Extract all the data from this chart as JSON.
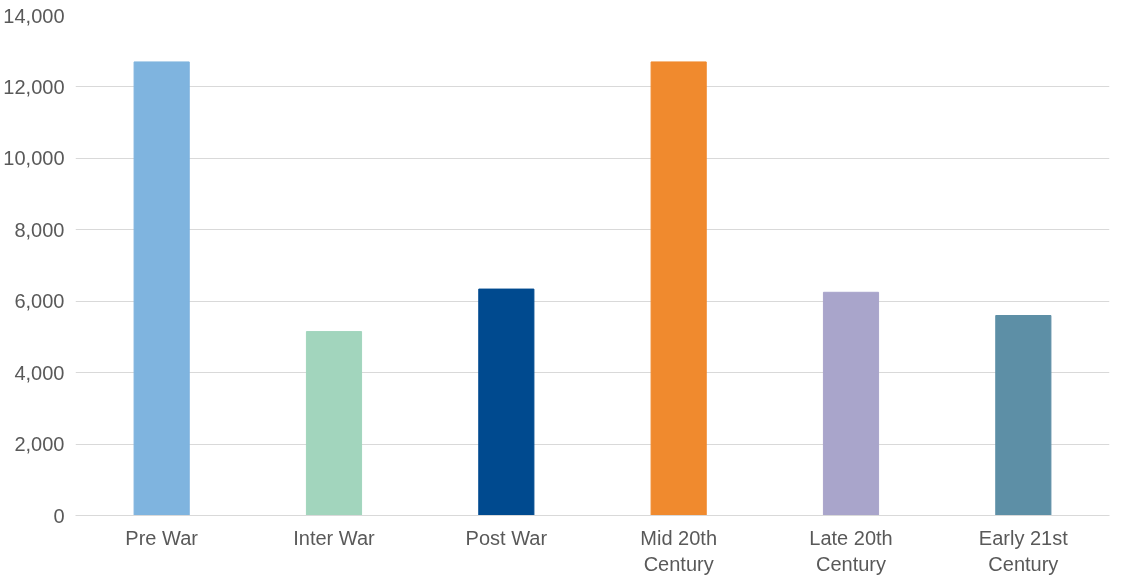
{
  "chart_data": {
    "type": "bar",
    "categories": [
      "Pre War",
      "Inter War",
      "Post War",
      "Mid 20th Century",
      "Late 20th Century",
      "Early 21st Century"
    ],
    "values": [
      12700,
      5150,
      6340,
      12700,
      6250,
      5600
    ],
    "colors": [
      "#7fb4df",
      "#a2d5bd",
      "#004a8f",
      "#f08a2e",
      "#a9a5cb",
      "#5d8fa6"
    ],
    "ylim": [
      0,
      14000
    ],
    "yticks": [
      {
        "value": 0,
        "label": "0"
      },
      {
        "value": 2000,
        "label": "2,000"
      },
      {
        "value": 4000,
        "label": "4,000"
      },
      {
        "value": 6000,
        "label": "6,000"
      },
      {
        "value": 8000,
        "label": "8,000"
      },
      {
        "value": 10000,
        "label": "10,000"
      },
      {
        "value": 12000,
        "label": "12,000"
      },
      {
        "value": 14000,
        "label": "14,000"
      }
    ],
    "grid": "y"
  }
}
